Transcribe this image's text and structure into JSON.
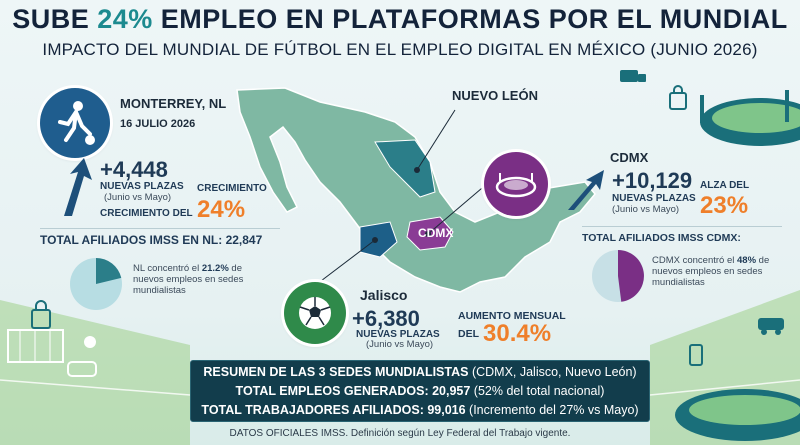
{
  "header": {
    "title_pre": "SUBE ",
    "title_highlight": "24%",
    "title_post": " EMPLEO EN PLATAFORMAS POR EL MUNDIAL",
    "subtitle": "IMPACTO DEL MUNDIAL DE FÚTBOL EN EL EMPLEO DIGITAL EN MÉXICO (JUNIO 2026)"
  },
  "map_labels": {
    "nuevo_leon": "NUEVO LEÓN",
    "cdmx": "CDMX"
  },
  "monterrey": {
    "city": "MONTERREY, NL",
    "date": "16 JULIO 2026",
    "plazas_value": "+4,448",
    "plazas_label": "NUEVAS PLAZAS",
    "plazas_note": "(Junio vs Mayo)",
    "growth_label": "CRECIMIENTO",
    "growth_prefix": "CRECIMIENTO DEL",
    "growth_value": "24%",
    "total_label": "TOTAL AFILIADOS IMSS EN NL:",
    "total_value": "22,847",
    "share_text_pre": "NL concentró el ",
    "share_value": "21.2%",
    "share_text_post": "de nuevos empleos en sedes mundialistas",
    "share_fraction": 0.212
  },
  "cdmx": {
    "city": "CDMX",
    "plazas_value": "+10,129",
    "plazas_label": "NUEVAS PLAZAS",
    "plazas_note": "(Junio vs Mayo)",
    "growth_label": "ALZA DEL",
    "growth_value": "23%",
    "total_label": "TOTAL AFILIADOS IMSS CDMX:",
    "share_text_pre": "CDMX concentró el ",
    "share_value": "48%",
    "share_text_post": "de nuevos empleos en sedes mundialistas",
    "share_fraction": 0.48
  },
  "jalisco": {
    "city": "Jalisco",
    "plazas_value": "+6,380",
    "plazas_label": "NUEVAS PLAZAS",
    "plazas_note": "(Junio vs Mayo)",
    "growth_label": "AUMENTO MENSUAL",
    "growth_prefix": "DEL",
    "growth_value": "30.4%"
  },
  "summary": {
    "title": "RESUMEN DE LAS 3 SEDES MUNDIALISTAS",
    "title_note": " (CDMX, Jalisco, Nuevo León)",
    "line1_label": "TOTAL EMPLEOS GENERADOS: ",
    "line1_value": "20,957",
    "line1_note": " (52% del total nacional)",
    "line2_label": "TOTAL TRABAJADORES AFILIADOS: ",
    "line2_value": "99,016",
    "line2_note": " (Incremento del 27% vs Mayo)"
  },
  "footer": "DATOS OFICIALES IMSS. Definición según Ley Federal del Trabajo vigente.",
  "colors": {
    "teal": "#1c8a8f",
    "navy": "#1f3a56",
    "orange": "#ef7f2a",
    "purple": "#7a2f85",
    "green": "#2f8a4a"
  },
  "icons": [
    "soccer-player-icon",
    "stadium-icon",
    "soccer-ball-icon",
    "shopping-bag-icon",
    "delivery-truck-icon",
    "smartphone-icon",
    "taxi-icon"
  ]
}
